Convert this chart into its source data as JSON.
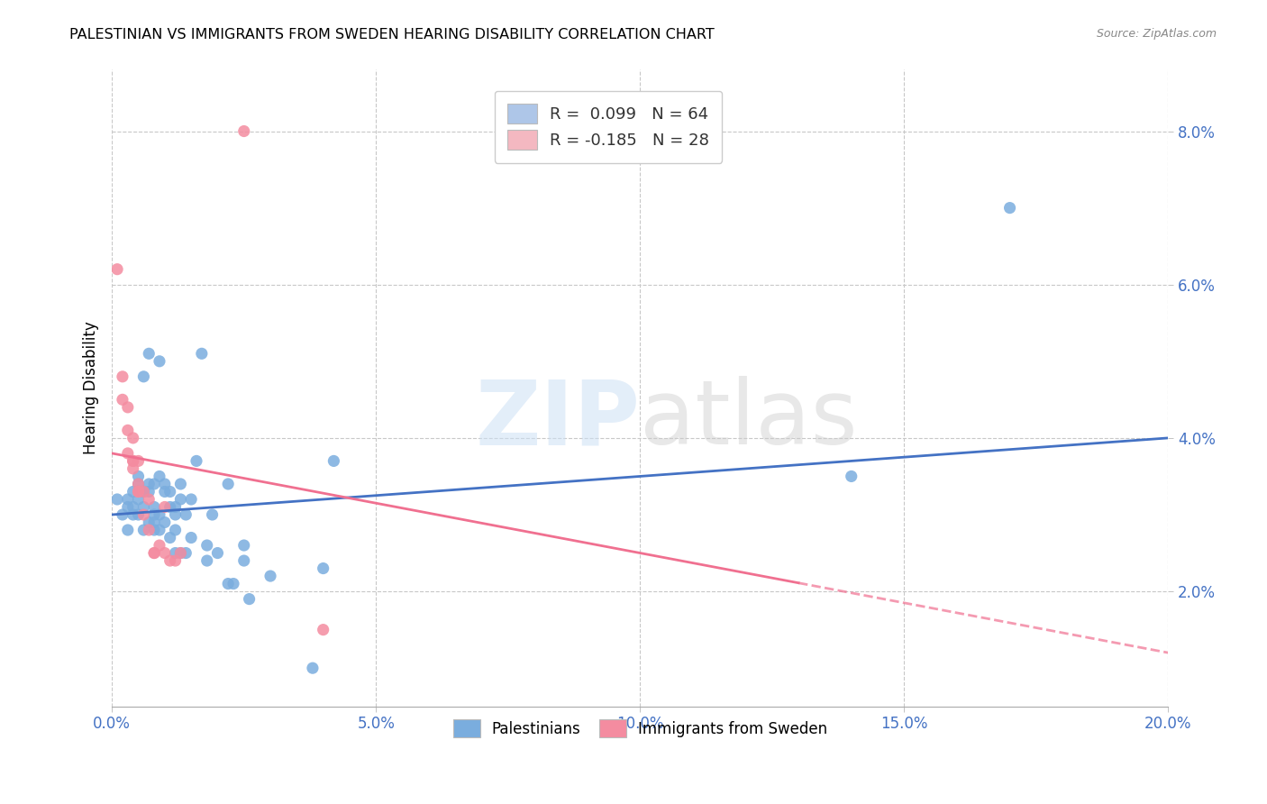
{
  "title": "PALESTINIAN VS IMMIGRANTS FROM SWEDEN HEARING DISABILITY CORRELATION CHART",
  "source": "Source: ZipAtlas.com",
  "xlim": [
    0.0,
    0.2
  ],
  "ylim": [
    0.005,
    0.088
  ],
  "legend_entries": [
    {
      "label": "R =  0.099   N = 64",
      "color": "#aec6e8"
    },
    {
      "label": "R = -0.185   N = 28",
      "color": "#f4b8c1"
    }
  ],
  "palestinians_color": "#7aadde",
  "sweden_color": "#f48ca0",
  "trend_blue": "#4472c4",
  "trend_pink": "#f07090",
  "blue_scatter": [
    [
      0.001,
      0.032
    ],
    [
      0.002,
      0.03
    ],
    [
      0.003,
      0.032
    ],
    [
      0.003,
      0.028
    ],
    [
      0.003,
      0.031
    ],
    [
      0.004,
      0.031
    ],
    [
      0.004,
      0.03
    ],
    [
      0.004,
      0.033
    ],
    [
      0.005,
      0.03
    ],
    [
      0.005,
      0.032
    ],
    [
      0.005,
      0.035
    ],
    [
      0.005,
      0.034
    ],
    [
      0.006,
      0.028
    ],
    [
      0.006,
      0.031
    ],
    [
      0.006,
      0.033
    ],
    [
      0.006,
      0.048
    ],
    [
      0.007,
      0.029
    ],
    [
      0.007,
      0.033
    ],
    [
      0.007,
      0.051
    ],
    [
      0.007,
      0.034
    ],
    [
      0.008,
      0.028
    ],
    [
      0.008,
      0.03
    ],
    [
      0.008,
      0.031
    ],
    [
      0.008,
      0.029
    ],
    [
      0.008,
      0.034
    ],
    [
      0.009,
      0.028
    ],
    [
      0.009,
      0.03
    ],
    [
      0.009,
      0.035
    ],
    [
      0.009,
      0.05
    ],
    [
      0.01,
      0.029
    ],
    [
      0.01,
      0.033
    ],
    [
      0.01,
      0.034
    ],
    [
      0.011,
      0.033
    ],
    [
      0.011,
      0.031
    ],
    [
      0.011,
      0.027
    ],
    [
      0.012,
      0.031
    ],
    [
      0.012,
      0.03
    ],
    [
      0.012,
      0.028
    ],
    [
      0.012,
      0.025
    ],
    [
      0.013,
      0.032
    ],
    [
      0.013,
      0.034
    ],
    [
      0.013,
      0.025
    ],
    [
      0.014,
      0.03
    ],
    [
      0.014,
      0.025
    ],
    [
      0.015,
      0.032
    ],
    [
      0.015,
      0.027
    ],
    [
      0.016,
      0.037
    ],
    [
      0.017,
      0.051
    ],
    [
      0.018,
      0.026
    ],
    [
      0.018,
      0.024
    ],
    [
      0.019,
      0.03
    ],
    [
      0.02,
      0.025
    ],
    [
      0.022,
      0.034
    ],
    [
      0.022,
      0.021
    ],
    [
      0.023,
      0.021
    ],
    [
      0.025,
      0.026
    ],
    [
      0.025,
      0.024
    ],
    [
      0.026,
      0.019
    ],
    [
      0.03,
      0.022
    ],
    [
      0.038,
      0.01
    ],
    [
      0.04,
      0.023
    ],
    [
      0.042,
      0.037
    ],
    [
      0.14,
      0.035
    ],
    [
      0.17,
      0.07
    ]
  ],
  "pink_scatter": [
    [
      0.001,
      0.062
    ],
    [
      0.002,
      0.048
    ],
    [
      0.002,
      0.045
    ],
    [
      0.003,
      0.044
    ],
    [
      0.003,
      0.041
    ],
    [
      0.003,
      0.038
    ],
    [
      0.004,
      0.037
    ],
    [
      0.004,
      0.04
    ],
    [
      0.004,
      0.037
    ],
    [
      0.004,
      0.036
    ],
    [
      0.005,
      0.037
    ],
    [
      0.005,
      0.034
    ],
    [
      0.005,
      0.033
    ],
    [
      0.005,
      0.033
    ],
    [
      0.006,
      0.033
    ],
    [
      0.006,
      0.03
    ],
    [
      0.007,
      0.032
    ],
    [
      0.007,
      0.028
    ],
    [
      0.008,
      0.025
    ],
    [
      0.008,
      0.025
    ],
    [
      0.009,
      0.026
    ],
    [
      0.01,
      0.031
    ],
    [
      0.01,
      0.025
    ],
    [
      0.011,
      0.024
    ],
    [
      0.012,
      0.024
    ],
    [
      0.013,
      0.025
    ],
    [
      0.025,
      0.08
    ],
    [
      0.04,
      0.015
    ]
  ],
  "blue_trend_x": [
    0.0,
    0.2
  ],
  "blue_trend_y": [
    0.03,
    0.04
  ],
  "pink_trend_x": [
    0.0,
    0.2
  ],
  "pink_trend_y": [
    0.038,
    0.012
  ],
  "pink_trend_dash_start": 0.13,
  "grid_color": "#c8c8c8",
  "title_fontsize": 11.5,
  "tick_color": "#4472c4",
  "ytick_vals": [
    0.02,
    0.04,
    0.06,
    0.08
  ],
  "xtick_vals": [
    0.0,
    0.05,
    0.1,
    0.15,
    0.2
  ]
}
